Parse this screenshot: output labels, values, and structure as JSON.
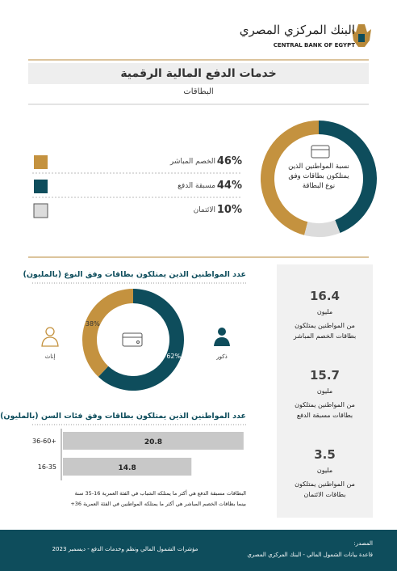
{
  "header": {
    "logo_ar": "البنك المركزي المصري",
    "logo_en": "CENTRAL BANK OF EGYPT",
    "title": "خدمات الدفع  المالية الرقمية",
    "subtitle": "البطاقات"
  },
  "card_types": {
    "type": "pie",
    "title": "نسبة المواطنين الذين يمتلكون بطاقات وفق نوع البطاقة",
    "items": [
      {
        "label": "الخصم المباشر",
        "value": 46,
        "value_label": "46%",
        "color": "#c4923f"
      },
      {
        "label": "مسبقة الدفع",
        "value": 44,
        "value_label": "44%",
        "color": "#0e4d5c"
      },
      {
        "label": "الائتمان",
        "value": 10,
        "value_label": "10%",
        "color": "#dcdcdc"
      }
    ]
  },
  "gender": {
    "type": "pie",
    "title": "عدد المواطنين الذين يمتلكون بطاقات وفق النوع (بالمليون)",
    "items": [
      {
        "label": "ذكور",
        "value": 62,
        "value_label": "62%",
        "color": "#0e4d5c"
      },
      {
        "label": "إناث",
        "value": 38,
        "value_label": "38%",
        "color": "#c4923f"
      }
    ]
  },
  "age": {
    "type": "bar",
    "title": "عدد المواطنين الذين  يمتلكون بطاقات وفق فئات السن (بالمليون)",
    "categories": [
      "36-60+",
      "16-35"
    ],
    "values": [
      20.8,
      14.8
    ],
    "color": "#c8c8c8",
    "xlim": [
      0,
      21
    ],
    "notes": [
      "البطاقات مسبقة الدفع هي أكثر ما يمتلكه الشباب في الفئة العمرية 16-35 سنة",
      "بينما بطاقات الخصم المباشر هي أكثر ما يمتلكه المواطنين في الفئة العمرية 36+"
    ]
  },
  "stats": [
    {
      "value": 16.4,
      "unit": "مليون",
      "text": "من المواطنين يمتلكون بطاقات الخصم المباشر"
    },
    {
      "value": 15.7,
      "unit": "مليون",
      "text": "من المواطنين يمتلكون بطاقات مسبقة الدفع"
    },
    {
      "value": 3.5,
      "unit": "مليون",
      "text": "من المواطنين يمتلكون بطاقات الائتمان"
    }
  ],
  "footer": {
    "report": "مؤشرات الشمول المالي ونظم وخدمات الدفع - ديسمبر 2023",
    "source_label": "المصدر:",
    "source": "قاعدة بيانات الشمول المالي - البنك المركزي المصري"
  }
}
